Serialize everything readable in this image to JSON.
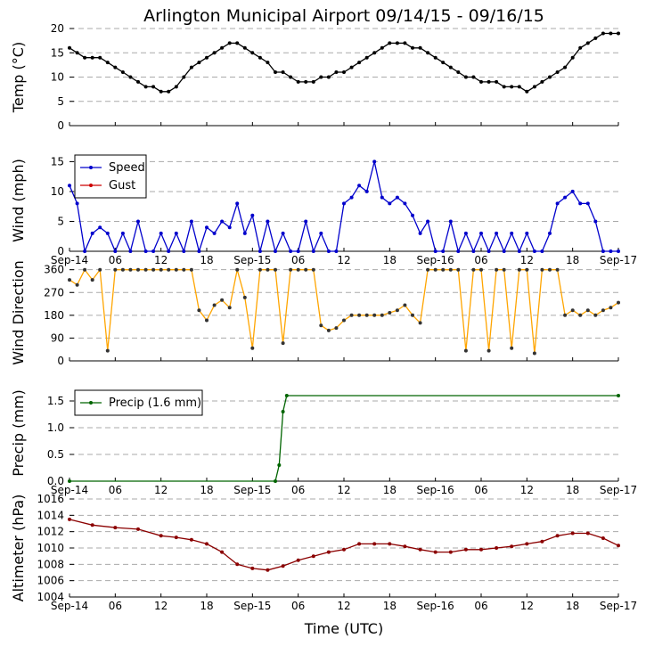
{
  "title": "Arlington Municipal Airport 09/14/15 - 09/16/15",
  "xlabel": "Time (UTC)",
  "x_ticks": [
    "Sep-14",
    "06",
    "12",
    "18",
    "Sep-15",
    "06",
    "12",
    "18",
    "Sep-16",
    "06",
    "12",
    "18",
    "Sep-17"
  ],
  "x_tick_hours": [
    0,
    6,
    12,
    18,
    24,
    30,
    36,
    42,
    48,
    54,
    60,
    66,
    72
  ],
  "chart_data": [
    {
      "type": "line",
      "ylabel": "Temp (°C)",
      "ylim": [
        0,
        20
      ],
      "yticks": [
        "0",
        "5",
        "10",
        "15",
        "20"
      ],
      "ytick_values": [
        0,
        5,
        10,
        15,
        20
      ],
      "grid": true,
      "x_axis_labels": false,
      "series": [
        {
          "color": "#000000",
          "x": [
            0,
            1,
            2,
            3,
            4,
            5,
            6,
            7,
            8,
            9,
            10,
            11,
            12,
            13,
            14,
            15,
            16,
            17,
            18,
            19,
            20,
            21,
            22,
            23,
            24,
            25,
            26,
            27,
            28,
            29,
            30,
            31,
            32,
            33,
            34,
            35,
            36,
            37,
            38,
            39,
            40,
            41,
            42,
            43,
            44,
            45,
            46,
            47,
            48,
            49,
            50,
            51,
            52,
            53,
            54,
            55,
            56,
            57,
            58,
            59,
            60,
            61,
            62,
            63,
            64,
            65,
            66,
            67,
            68,
            69,
            70,
            71,
            72
          ],
          "values": [
            16,
            15,
            14,
            14,
            14,
            13,
            12,
            11,
            10,
            9,
            8,
            8,
            7,
            7,
            8,
            10,
            12,
            13,
            14,
            15,
            16,
            17,
            17,
            16,
            15,
            14,
            13,
            11,
            11,
            10,
            9,
            9,
            9,
            10,
            10,
            11,
            11,
            12,
            13,
            14,
            15,
            16,
            17,
            17,
            17,
            16,
            16,
            15,
            14,
            13,
            12,
            11,
            10,
            10,
            9,
            9,
            9,
            8,
            8,
            8,
            7,
            8,
            9,
            10,
            11,
            12,
            14,
            16,
            17,
            18,
            19,
            19,
            19
          ]
        }
      ]
    },
    {
      "type": "line",
      "ylabel": "Wind (mph)",
      "ylim": [
        0,
        17
      ],
      "yticks": [
        "0",
        "5",
        "10",
        "15"
      ],
      "ytick_values": [
        0,
        5,
        10,
        15
      ],
      "grid": true,
      "x_axis_labels": true,
      "legend": {
        "position": "top-left",
        "entries": [
          {
            "label": "Speed",
            "color": "#0000cc"
          },
          {
            "label": "Gust",
            "color": "#cc0000"
          }
        ]
      },
      "series": [
        {
          "name": "Speed",
          "color": "#0000cc",
          "x": [
            0,
            1,
            2,
            3,
            4,
            5,
            6,
            7,
            8,
            9,
            10,
            11,
            12,
            13,
            14,
            15,
            16,
            17,
            18,
            19,
            20,
            21,
            22,
            23,
            24,
            25,
            26,
            27,
            28,
            29,
            30,
            31,
            32,
            33,
            34,
            35,
            36,
            37,
            38,
            39,
            40,
            41,
            42,
            43,
            44,
            45,
            46,
            47,
            48,
            49,
            50,
            51,
            52,
            53,
            54,
            55,
            56,
            57,
            58,
            59,
            60,
            61,
            62,
            63,
            64,
            65,
            66,
            67,
            68,
            69,
            70,
            71,
            72
          ],
          "values": [
            11,
            8,
            0,
            3,
            4,
            3,
            0,
            3,
            0,
            5,
            0,
            0,
            3,
            0,
            3,
            0,
            5,
            0,
            4,
            3,
            5,
            4,
            8,
            3,
            6,
            0,
            5,
            0,
            3,
            0,
            0,
            5,
            0,
            3,
            0,
            0,
            8,
            9,
            11,
            10,
            15,
            9,
            8,
            9,
            8,
            6,
            3,
            5,
            0,
            0,
            5,
            0,
            3,
            0,
            3,
            0,
            3,
            0,
            3,
            0,
            3,
            0,
            0,
            3,
            8,
            9,
            10,
            8,
            8,
            5,
            0,
            0,
            0
          ]
        },
        {
          "name": "Gust",
          "color": "#cc0000",
          "x": [],
          "values": []
        }
      ]
    },
    {
      "type": "scatter",
      "ylabel": "Wind Direction",
      "ylim": [
        0,
        380
      ],
      "yticks": [
        "0",
        "90",
        "180",
        "270",
        "360"
      ],
      "ytick_values": [
        0,
        90,
        180,
        270,
        360
      ],
      "grid": true,
      "x_axis_labels": false,
      "series": [
        {
          "color": "#ffa500",
          "x": [
            0,
            1,
            2,
            3,
            4,
            5,
            6,
            7,
            8,
            9,
            10,
            11,
            12,
            13,
            14,
            15,
            16,
            17,
            18,
            19,
            20,
            21,
            22,
            23,
            24,
            25,
            26,
            27,
            28,
            29,
            30,
            31,
            32,
            33,
            34,
            35,
            36,
            37,
            38,
            39,
            40,
            41,
            42,
            43,
            44,
            45,
            46,
            47,
            48,
            49,
            50,
            51,
            52,
            53,
            54,
            55,
            56,
            57,
            58,
            59,
            60,
            61,
            62,
            63,
            64,
            65,
            66,
            67,
            68,
            69,
            70,
            71,
            72
          ],
          "values": [
            320,
            300,
            360,
            320,
            360,
            40,
            360,
            360,
            360,
            360,
            360,
            360,
            360,
            360,
            360,
            360,
            360,
            200,
            160,
            220,
            240,
            210,
            360,
            250,
            50,
            360,
            360,
            360,
            70,
            360,
            360,
            360,
            360,
            140,
            120,
            130,
            160,
            180,
            180,
            180,
            180,
            180,
            190,
            200,
            220,
            180,
            150,
            360,
            360,
            360,
            360,
            360,
            40,
            360,
            360,
            40,
            360,
            360,
            50,
            360,
            360,
            30,
            360,
            360,
            360,
            180,
            200,
            180,
            200,
            180,
            200,
            210,
            230
          ]
        }
      ]
    },
    {
      "type": "line",
      "ylabel": "Precip (mm)",
      "ylim": [
        0,
        1.8
      ],
      "yticks": [
        "0.0",
        "0.5",
        "1.0",
        "1.5"
      ],
      "ytick_values": [
        0,
        0.5,
        1.0,
        1.5
      ],
      "grid": true,
      "x_axis_labels": true,
      "legend": {
        "position": "top-left",
        "entries": [
          {
            "label": "Precip (1.6 mm)",
            "color": "#006400"
          }
        ]
      },
      "series": [
        {
          "name": "Precip (1.6 mm)",
          "color": "#006400",
          "x": [
            0,
            27,
            27.5,
            28,
            28.5,
            72
          ],
          "values": [
            0,
            0,
            0.3,
            1.3,
            1.6,
            1.6
          ]
        }
      ]
    },
    {
      "type": "line",
      "ylabel": "Altimeter (hPa)",
      "ylim": [
        1004,
        1016
      ],
      "yticks": [
        "1004",
        "1006",
        "1008",
        "1010",
        "1012",
        "1014",
        "1016"
      ],
      "ytick_values": [
        1004,
        1006,
        1008,
        1010,
        1012,
        1014,
        1016
      ],
      "grid": true,
      "x_axis_labels": true,
      "series": [
        {
          "color": "#8b0000",
          "x": [
            0,
            3,
            6,
            9,
            12,
            14,
            16,
            18,
            20,
            22,
            24,
            26,
            28,
            30,
            32,
            34,
            36,
            38,
            40,
            42,
            44,
            46,
            48,
            50,
            52,
            54,
            56,
            58,
            60,
            62,
            64,
            66,
            68,
            70,
            72
          ],
          "values": [
            1013.5,
            1012.8,
            1012.5,
            1012.3,
            1011.5,
            1011.3,
            1011.0,
            1010.5,
            1009.5,
            1008.0,
            1007.5,
            1007.3,
            1007.8,
            1008.5,
            1009.0,
            1009.5,
            1009.8,
            1010.5,
            1010.5,
            1010.5,
            1010.2,
            1009.8,
            1009.5,
            1009.5,
            1009.8,
            1009.8,
            1010.0,
            1010.2,
            1010.5,
            1010.8,
            1011.5,
            1011.8,
            1011.8,
            1011.2,
            1010.3
          ]
        }
      ]
    }
  ]
}
